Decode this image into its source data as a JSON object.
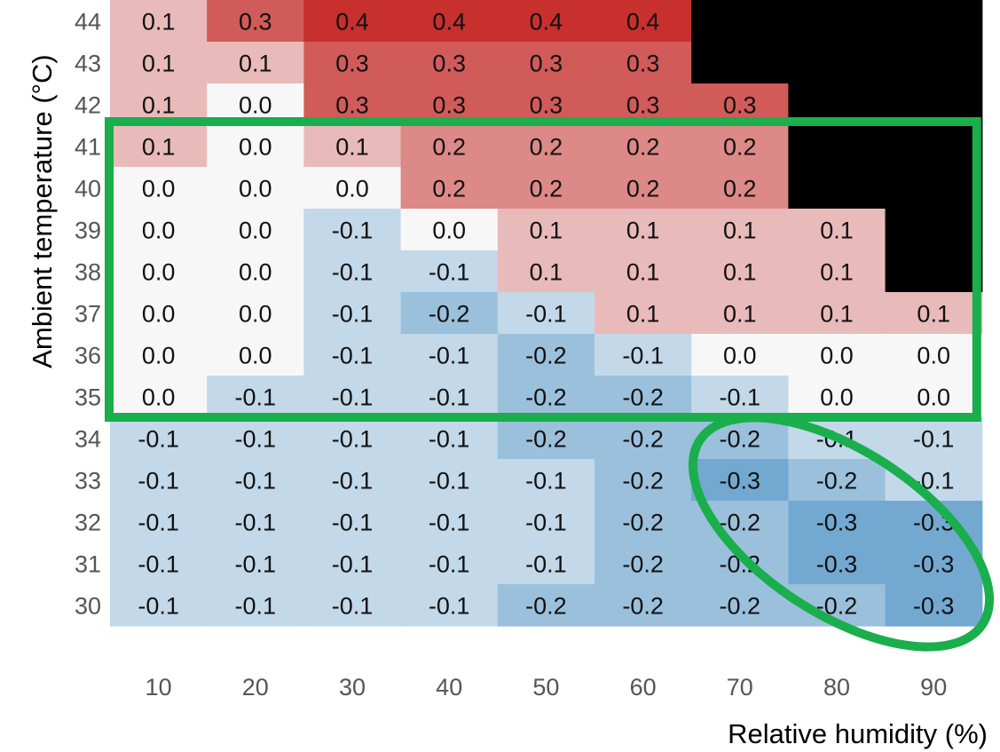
{
  "chart_data": {
    "type": "heatmap",
    "title": "",
    "xlabel": "Relative humidity (%)",
    "ylabel": "Ambient temperature (°C)",
    "x": [
      10,
      20,
      30,
      40,
      50,
      60,
      70,
      80,
      90
    ],
    "y": [
      44,
      43,
      42,
      41,
      40,
      39,
      38,
      37,
      36,
      35,
      34,
      33,
      32,
      31,
      30
    ],
    "values": [
      [
        0.1,
        0.3,
        0.4,
        0.4,
        0.4,
        0.4,
        null,
        null,
        null
      ],
      [
        0.1,
        0.1,
        0.3,
        0.3,
        0.3,
        0.3,
        null,
        null,
        null
      ],
      [
        0.1,
        0.0,
        0.3,
        0.3,
        0.3,
        0.3,
        0.3,
        null,
        null
      ],
      [
        0.1,
        0.0,
        0.1,
        0.2,
        0.2,
        0.2,
        0.2,
        null,
        null
      ],
      [
        0.0,
        0.0,
        0.0,
        0.2,
        0.2,
        0.2,
        0.2,
        null,
        null
      ],
      [
        0.0,
        0.0,
        -0.1,
        0.0,
        0.1,
        0.1,
        0.1,
        0.1,
        null
      ],
      [
        0.0,
        0.0,
        -0.1,
        -0.1,
        0.1,
        0.1,
        0.1,
        0.1,
        null
      ],
      [
        0.0,
        0.0,
        -0.1,
        -0.2,
        -0.1,
        0.1,
        0.1,
        0.1,
        0.1
      ],
      [
        0.0,
        0.0,
        -0.1,
        -0.1,
        -0.2,
        -0.1,
        0.0,
        0.0,
        0.0
      ],
      [
        0.0,
        -0.1,
        -0.1,
        -0.1,
        -0.2,
        -0.2,
        -0.1,
        0.0,
        0.0
      ],
      [
        -0.1,
        -0.1,
        -0.1,
        -0.1,
        -0.2,
        -0.2,
        -0.2,
        -0.1,
        -0.1
      ],
      [
        -0.1,
        -0.1,
        -0.1,
        -0.1,
        -0.1,
        -0.2,
        -0.3,
        -0.2,
        -0.1
      ],
      [
        -0.1,
        -0.1,
        -0.1,
        -0.1,
        -0.1,
        -0.2,
        -0.2,
        -0.3,
        -0.3
      ],
      [
        -0.1,
        -0.1,
        -0.1,
        -0.1,
        -0.1,
        -0.2,
        -0.2,
        -0.3,
        -0.3
      ],
      [
        -0.1,
        -0.1,
        -0.1,
        -0.1,
        -0.2,
        -0.2,
        -0.2,
        -0.2,
        -0.3
      ]
    ],
    "missing_color": "#000000",
    "colors": {
      "negative": "#4f93c6",
      "neutral": "#f7f7f7",
      "positive": "#c7302d",
      "highlight": "#1aae4c"
    },
    "highlights": [
      {
        "shape": "rectangle",
        "rows_from": 41,
        "rows_to": 35,
        "cols_from": 10,
        "cols_to": 90
      },
      {
        "shape": "ellipse",
        "rows_from": 34,
        "rows_to": 30,
        "cols_from": 70,
        "cols_to": 90
      }
    ]
  }
}
